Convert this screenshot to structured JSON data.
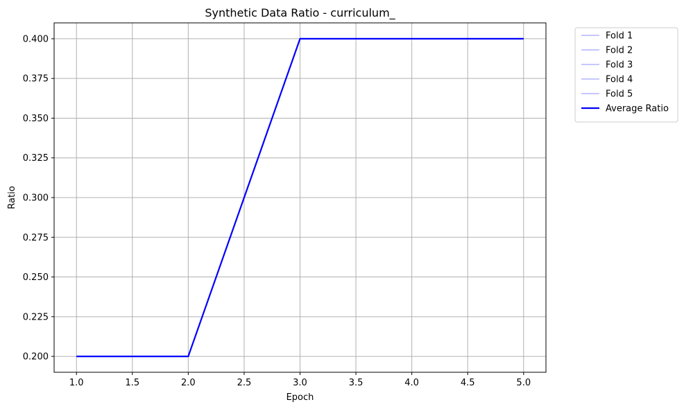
{
  "chart_data": {
    "type": "line",
    "title": "Synthetic Data Ratio - curriculum_",
    "xlabel": "Epoch",
    "ylabel": "Ratio",
    "xlim": [
      0.8,
      5.2
    ],
    "ylim": [
      0.19,
      0.41
    ],
    "xticks": [
      1.0,
      1.5,
      2.0,
      2.5,
      3.0,
      3.5,
      4.0,
      4.5,
      5.0
    ],
    "xtick_labels": [
      "1.0",
      "1.5",
      "2.0",
      "2.5",
      "3.0",
      "3.5",
      "4.0",
      "4.5",
      "5.0"
    ],
    "yticks": [
      0.2,
      0.225,
      0.25,
      0.275,
      0.3,
      0.325,
      0.35,
      0.375,
      0.4
    ],
    "ytick_labels": [
      "0.200",
      "0.225",
      "0.250",
      "0.275",
      "0.300",
      "0.325",
      "0.350",
      "0.375",
      "0.400"
    ],
    "grid": true,
    "legend_position": "outside-top-right",
    "x": [
      1,
      2,
      3,
      4,
      5
    ],
    "series": [
      {
        "name": "Fold 1",
        "values": [
          0.2,
          0.2,
          0.4,
          0.4,
          0.4
        ],
        "color": "#0000ff",
        "opacity": 0.3,
        "width": 1.5
      },
      {
        "name": "Fold 2",
        "values": [
          0.2,
          0.2,
          0.4,
          0.4,
          0.4
        ],
        "color": "#0000ff",
        "opacity": 0.3,
        "width": 1.5
      },
      {
        "name": "Fold 3",
        "values": [
          0.2,
          0.2,
          0.4,
          0.4,
          0.4
        ],
        "color": "#0000ff",
        "opacity": 0.3,
        "width": 1.5
      },
      {
        "name": "Fold 4",
        "values": [
          0.2,
          0.2,
          0.4,
          0.4,
          0.4
        ],
        "color": "#0000ff",
        "opacity": 0.3,
        "width": 1.5
      },
      {
        "name": "Fold 5",
        "values": [
          0.2,
          0.2,
          0.4,
          0.4,
          0.4
        ],
        "color": "#0000ff",
        "opacity": 0.3,
        "width": 1.5
      },
      {
        "name": "Average Ratio",
        "values": [
          0.2,
          0.2,
          0.4,
          0.4,
          0.4
        ],
        "color": "#0000ff",
        "opacity": 1.0,
        "width": 2.2
      }
    ]
  }
}
